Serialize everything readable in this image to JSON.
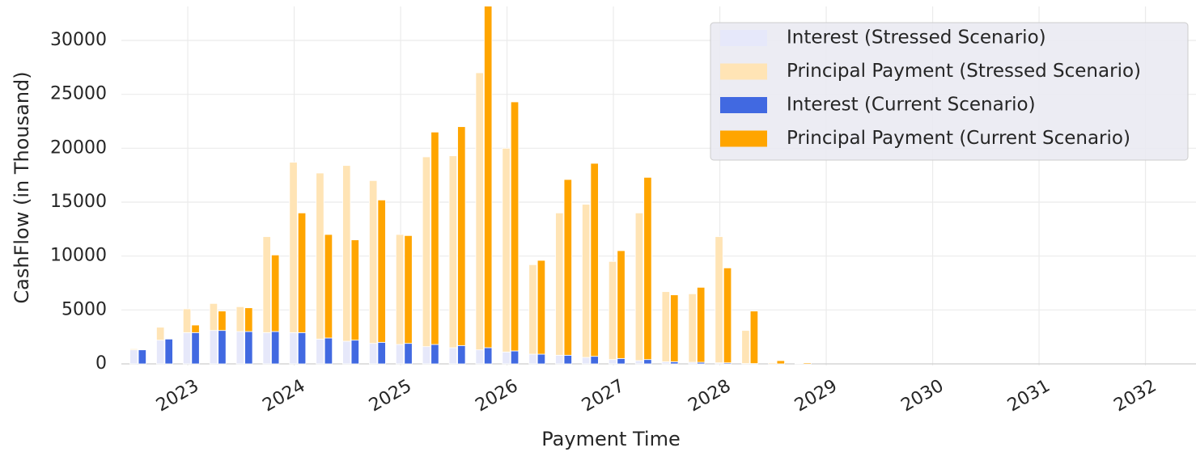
{
  "chart_data": {
    "type": "bar",
    "xlabel": "Payment Time",
    "ylabel": "CashFlow (in Thousand)",
    "x": [
      2022.5,
      2022.75,
      2023.0,
      2023.25,
      2023.5,
      2023.75,
      2024.0,
      2024.25,
      2024.5,
      2024.75,
      2025.0,
      2025.25,
      2025.5,
      2025.75,
      2026.0,
      2026.25,
      2026.5,
      2026.75,
      2027.0,
      2027.25,
      2027.5,
      2027.75,
      2028.0,
      2028.25,
      2028.5,
      2028.75
    ],
    "series": [
      {
        "name": "Interest (Stressed Scenario)",
        "color": "#e6e8fa",
        "values": [
          1300,
          2200,
          2900,
          3100,
          3000,
          2900,
          2900,
          2300,
          2100,
          1900,
          1800,
          1600,
          1500,
          1300,
          1100,
          900,
          800,
          600,
          400,
          300,
          200,
          150,
          100,
          30,
          0,
          0
        ]
      },
      {
        "name": "Principal Payment (Stressed Scenario)",
        "color": "#ffe4b5",
        "values": [
          100,
          1200,
          2200,
          2500,
          2300,
          8900,
          15800,
          15400,
          16300,
          15100,
          10200,
          17600,
          17800,
          25700,
          18900,
          8300,
          13200,
          14200,
          9100,
          13700,
          6500,
          6350,
          11700,
          3070,
          100,
          50
        ]
      },
      {
        "name": "Interest (Current Scenario)",
        "color": "#4169e1",
        "values": [
          1300,
          2300,
          2900,
          3100,
          3000,
          3000,
          2900,
          2400,
          2200,
          2000,
          1900,
          1800,
          1700,
          1500,
          1200,
          900,
          800,
          700,
          500,
          400,
          200,
          150,
          100,
          30,
          0,
          0
        ]
      },
      {
        "name": "Principal Payment (Current Scenario)",
        "color": "#ffa500",
        "values": [
          0,
          0,
          700,
          1800,
          2200,
          7100,
          11100,
          9600,
          9300,
          13200,
          10000,
          19700,
          20300,
          32000,
          23100,
          8700,
          16300,
          17900,
          10000,
          16900,
          6200,
          6950,
          8800,
          4870,
          300,
          100
        ]
      }
    ],
    "xlim": [
      2022.376,
      2032.475
    ],
    "xticks": [
      2023,
      2024,
      2025,
      2026,
      2027,
      2028,
      2029,
      2030,
      2031,
      2032
    ],
    "ylim": [
      -150,
      33150
    ],
    "yticks": [
      0,
      5000,
      10000,
      15000,
      20000,
      25000,
      30000
    ],
    "grid": true,
    "legend": "upper right"
  }
}
